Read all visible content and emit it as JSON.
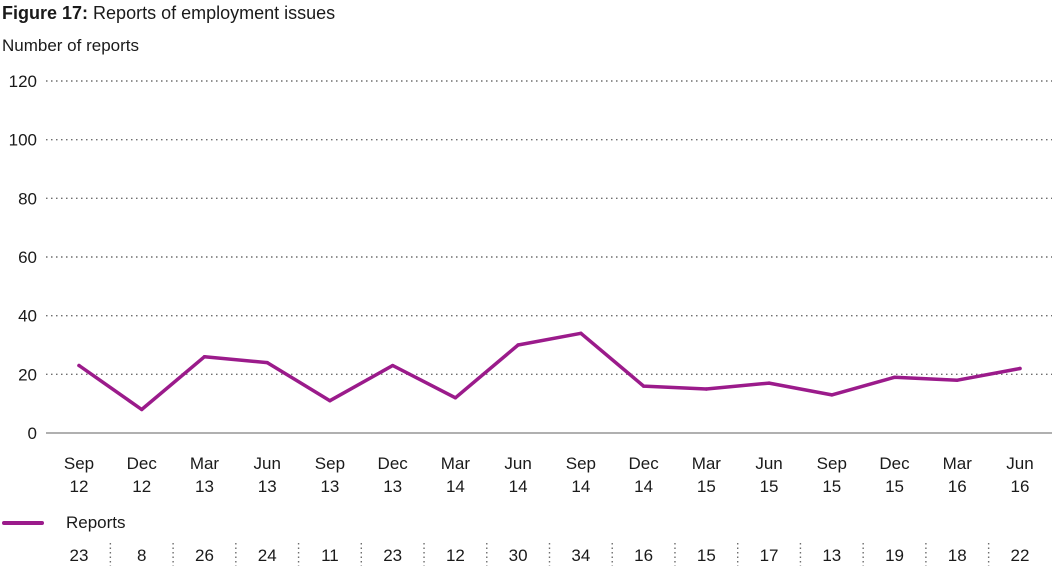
{
  "figure": {
    "label": "Figure 17:",
    "title": "Reports of employment issues"
  },
  "chart_data": {
    "type": "line",
    "ylabel": "Number of reports",
    "ylim": [
      0,
      120
    ],
    "yticks": [
      0,
      20,
      40,
      60,
      80,
      100,
      120
    ],
    "grid": true,
    "categories": [
      [
        "Sep",
        "12"
      ],
      [
        "Dec",
        "12"
      ],
      [
        "Mar",
        "13"
      ],
      [
        "Jun",
        "13"
      ],
      [
        "Sep",
        "13"
      ],
      [
        "Dec",
        "13"
      ],
      [
        "Mar",
        "14"
      ],
      [
        "Jun",
        "14"
      ],
      [
        "Sep",
        "14"
      ],
      [
        "Dec",
        "14"
      ],
      [
        "Mar",
        "15"
      ],
      [
        "Jun",
        "15"
      ],
      [
        "Sep",
        "15"
      ],
      [
        "Dec",
        "15"
      ],
      [
        "Mar",
        "16"
      ],
      [
        "Jun",
        "16"
      ]
    ],
    "series": [
      {
        "name": "Reports",
        "color": "#9b1b8b",
        "values": [
          23,
          8,
          26,
          24,
          11,
          23,
          12,
          30,
          34,
          16,
          15,
          17,
          13,
          19,
          18,
          22
        ]
      }
    ],
    "legend": "bottom-left",
    "data_table": true
  }
}
